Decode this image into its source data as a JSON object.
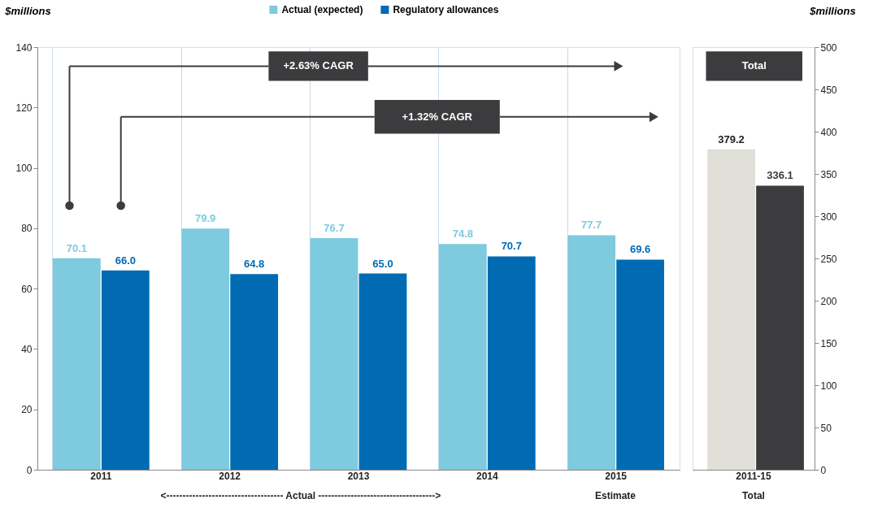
{
  "chart_data": [
    {
      "type": "bar",
      "categories": [
        "2011",
        "2012",
        "2013",
        "2014",
        "2015"
      ],
      "series": [
        {
          "name": "Actual (expected)",
          "color": "#7ecadf",
          "values": [
            70.1,
            79.9,
            76.7,
            74.8,
            77.7
          ]
        },
        {
          "name": "Regulatory allowances",
          "color": "#006bb3",
          "values": [
            66.0,
            64.8,
            65.0,
            70.7,
            69.6
          ],
          "value_labels": [
            "66.0",
            "64.8",
            "65.0",
            "70.7",
            "69.6"
          ]
        }
      ],
      "ylim": [
        0,
        140
      ],
      "yticks": [
        0,
        20,
        40,
        60,
        80,
        100,
        120,
        140
      ],
      "ylabel": "$millions",
      "data_labels": true,
      "legend": "top",
      "grid": "x",
      "annotations": [
        "+2.63% CAGR",
        "+1.32% CAGR",
        "<------------------------------------ Actual ------------------------------------>",
        "Estimate"
      ]
    },
    {
      "type": "bar",
      "categories": [
        "2011-15"
      ],
      "series": [
        {
          "color": "#e0dfd8",
          "values": [
            379.2
          ]
        },
        {
          "color": "#3c3c3e",
          "values": [
            336.1
          ]
        }
      ],
      "ylim": [
        0,
        500
      ],
      "yticks": [
        0,
        50,
        100,
        150,
        200,
        250,
        300,
        350,
        400,
        450,
        500
      ],
      "ylabel": "$millions",
      "data_labels": true,
      "annotations": [
        "Total",
        "Total"
      ]
    }
  ]
}
